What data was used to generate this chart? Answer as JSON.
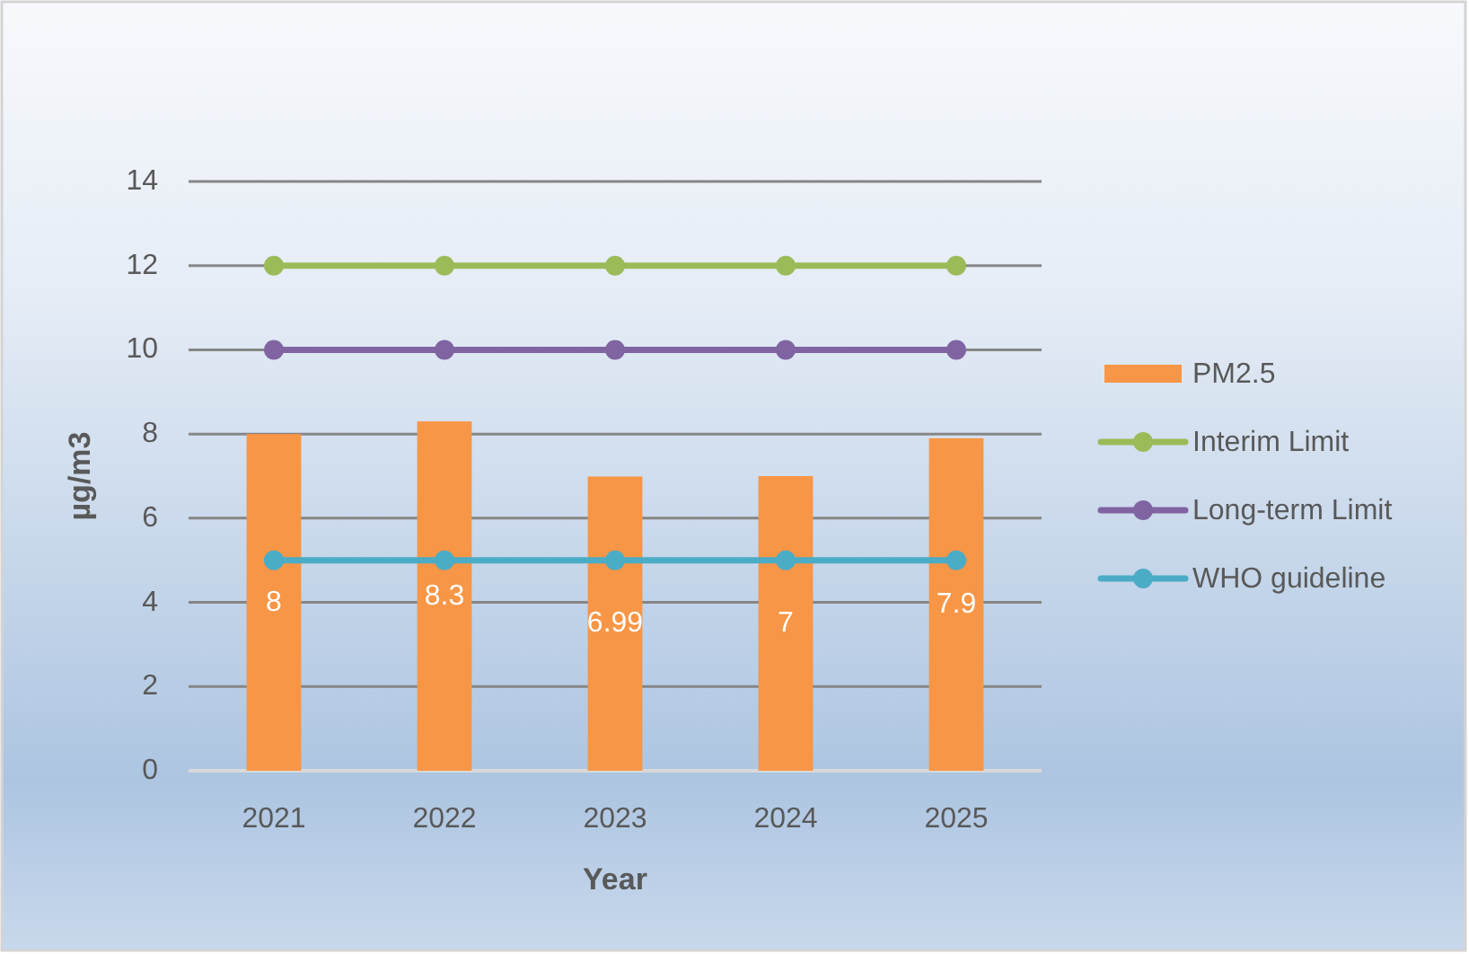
{
  "chart_data": {
    "type": "bar",
    "xlabel": "Year",
    "ylabel": "µg/m3",
    "categories": [
      "2021",
      "2022",
      "2023",
      "2024",
      "2025"
    ],
    "series": [
      {
        "name": "PM2.5",
        "color": "#f79646",
        "values": [
          8,
          8.3,
          6.99,
          7,
          7.9
        ],
        "value_labels": [
          "8",
          "8.3",
          "6.99",
          "7",
          "7.9"
        ]
      },
      {
        "name": "Interim Limit",
        "type": "line",
        "color": "#9bbb59",
        "values": [
          12,
          12,
          12,
          12,
          12
        ]
      },
      {
        "name": "Long-term Limit",
        "type": "line",
        "color": "#8064a2",
        "values": [
          10,
          10,
          10,
          10,
          10
        ]
      },
      {
        "name": "WHO guideline",
        "type": "line",
        "color": "#4bacc6",
        "values": [
          5,
          5,
          5,
          5,
          5
        ]
      }
    ],
    "ylim": [
      0,
      14
    ],
    "yticks": [
      0,
      2,
      4,
      6,
      8,
      10,
      12,
      14
    ],
    "grid": "y",
    "legend": "right",
    "marker": "circle"
  }
}
